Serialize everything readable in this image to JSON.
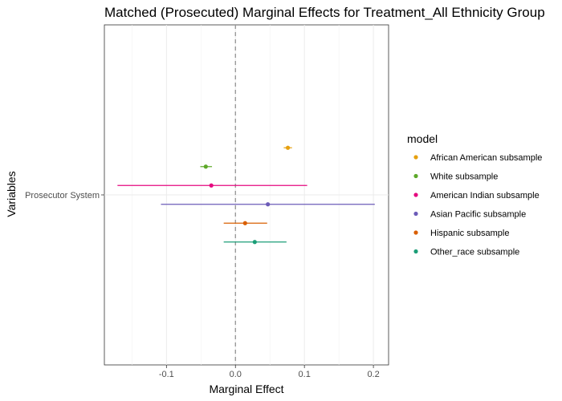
{
  "chart_data": {
    "type": "errorbar",
    "title": "Matched (Prosecuted) Marginal Effects for Treatment_All Ethnicity Group",
    "xlabel": "Marginal Effect",
    "ylabel": "Variables",
    "xlim": [
      -0.19,
      0.222
    ],
    "x_ticks": [
      -0.1,
      0.0,
      0.1,
      0.2
    ],
    "x_tick_labels": [
      "-0.1",
      "0.0",
      "0.1",
      "0.2"
    ],
    "y_categories": [
      "Prosecutor System"
    ],
    "reference_line": 0,
    "grid": true,
    "legend": {
      "title": "model",
      "position": "right"
    },
    "series": [
      {
        "name": "African American subsample",
        "estimate": 0.076,
        "lower": 0.07,
        "upper": 0.082,
        "color": "#E6A00F"
      },
      {
        "name": "White subsample",
        "estimate": -0.043,
        "lower": -0.051,
        "upper": -0.034,
        "color": "#5DA829"
      },
      {
        "name": "American Indian subsample",
        "estimate": -0.035,
        "lower": -0.171,
        "upper": 0.104,
        "color": "#E5097F"
      },
      {
        "name": "Asian Pacific subsample",
        "estimate": 0.047,
        "lower": -0.108,
        "upper": 0.202,
        "color": "#6C5BB8"
      },
      {
        "name": "Hispanic subsample",
        "estimate": 0.014,
        "lower": -0.017,
        "upper": 0.046,
        "color": "#D95F02"
      },
      {
        "name": "Other_race subsample",
        "estimate": 0.028,
        "lower": -0.017,
        "upper": 0.074,
        "color": "#1B9E77"
      }
    ]
  }
}
